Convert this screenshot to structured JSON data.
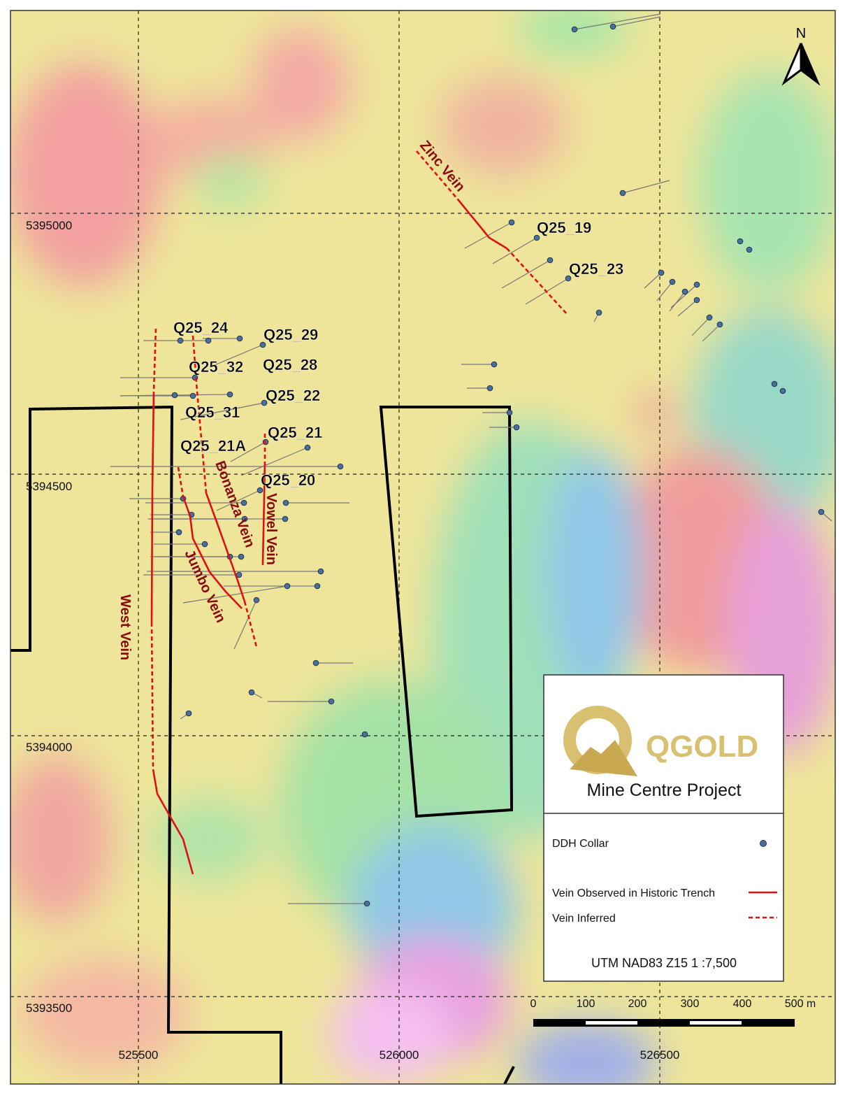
{
  "north": "N",
  "grid": {
    "eastings": [
      "525500",
      "526000",
      "526500"
    ],
    "northings": [
      "5395000",
      "5394500",
      "5394000",
      "5393500"
    ]
  },
  "veins": [
    "Zinc Vein",
    "Bonanza Vein",
    "Vowel Vein",
    "Jumbo Vein",
    "West Vein"
  ],
  "holes": [
    "Q25_24",
    "Q25_29",
    "Q25_32",
    "Q25_28",
    "Q25_22",
    "Q25_31",
    "Q25_21",
    "Q25_21A",
    "Q25_20",
    "Q25_19",
    "Q25_23"
  ],
  "legend": {
    "logo": "QGOLD",
    "project": "Mine Centre Project",
    "items": [
      "DDH Collar",
      "Vein Observed in Historic Trench",
      "Vein Inferred"
    ],
    "projection": "UTM NAD83 Z15  1 :7,500"
  },
  "scale": {
    "labels": [
      "0",
      "100",
      "200",
      "300",
      "400",
      "500 m"
    ]
  }
}
